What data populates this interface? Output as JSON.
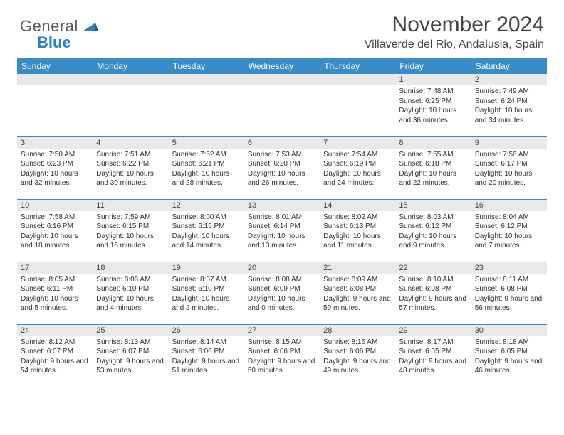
{
  "logo": {
    "text1": "General",
    "text2": "Blue"
  },
  "title": "November 2024",
  "location": "Villaverde del Rio, Andalusia, Spain",
  "colors": {
    "header_bg": "#3a8cc9",
    "header_text": "#ffffff",
    "daynum_bg": "#e9e9e9",
    "border": "#3a8cc9",
    "body_text": "#333333",
    "logo_gray": "#5a5a5a",
    "logo_blue": "#2d7fbf"
  },
  "day_names": [
    "Sunday",
    "Monday",
    "Tuesday",
    "Wednesday",
    "Thursday",
    "Friday",
    "Saturday"
  ],
  "weeks": [
    [
      {
        "num": "",
        "lines": []
      },
      {
        "num": "",
        "lines": []
      },
      {
        "num": "",
        "lines": []
      },
      {
        "num": "",
        "lines": []
      },
      {
        "num": "",
        "lines": []
      },
      {
        "num": "1",
        "lines": [
          "Sunrise: 7:48 AM",
          "Sunset: 6:25 PM",
          "Daylight: 10 hours and 36 minutes."
        ]
      },
      {
        "num": "2",
        "lines": [
          "Sunrise: 7:49 AM",
          "Sunset: 6:24 PM",
          "Daylight: 10 hours and 34 minutes."
        ]
      }
    ],
    [
      {
        "num": "3",
        "lines": [
          "Sunrise: 7:50 AM",
          "Sunset: 6:23 PM",
          "Daylight: 10 hours and 32 minutes."
        ]
      },
      {
        "num": "4",
        "lines": [
          "Sunrise: 7:51 AM",
          "Sunset: 6:22 PM",
          "Daylight: 10 hours and 30 minutes."
        ]
      },
      {
        "num": "5",
        "lines": [
          "Sunrise: 7:52 AM",
          "Sunset: 6:21 PM",
          "Daylight: 10 hours and 28 minutes."
        ]
      },
      {
        "num": "6",
        "lines": [
          "Sunrise: 7:53 AM",
          "Sunset: 6:20 PM",
          "Daylight: 10 hours and 26 minutes."
        ]
      },
      {
        "num": "7",
        "lines": [
          "Sunrise: 7:54 AM",
          "Sunset: 6:19 PM",
          "Daylight: 10 hours and 24 minutes."
        ]
      },
      {
        "num": "8",
        "lines": [
          "Sunrise: 7:55 AM",
          "Sunset: 6:18 PM",
          "Daylight: 10 hours and 22 minutes."
        ]
      },
      {
        "num": "9",
        "lines": [
          "Sunrise: 7:56 AM",
          "Sunset: 6:17 PM",
          "Daylight: 10 hours and 20 minutes."
        ]
      }
    ],
    [
      {
        "num": "10",
        "lines": [
          "Sunrise: 7:58 AM",
          "Sunset: 6:16 PM",
          "Daylight: 10 hours and 18 minutes."
        ]
      },
      {
        "num": "11",
        "lines": [
          "Sunrise: 7:59 AM",
          "Sunset: 6:15 PM",
          "Daylight: 10 hours and 16 minutes."
        ]
      },
      {
        "num": "12",
        "lines": [
          "Sunrise: 8:00 AM",
          "Sunset: 6:15 PM",
          "Daylight: 10 hours and 14 minutes."
        ]
      },
      {
        "num": "13",
        "lines": [
          "Sunrise: 8:01 AM",
          "Sunset: 6:14 PM",
          "Daylight: 10 hours and 13 minutes."
        ]
      },
      {
        "num": "14",
        "lines": [
          "Sunrise: 8:02 AM",
          "Sunset: 6:13 PM",
          "Daylight: 10 hours and 11 minutes."
        ]
      },
      {
        "num": "15",
        "lines": [
          "Sunrise: 8:03 AM",
          "Sunset: 6:12 PM",
          "Daylight: 10 hours and 9 minutes."
        ]
      },
      {
        "num": "16",
        "lines": [
          "Sunrise: 8:04 AM",
          "Sunset: 6:12 PM",
          "Daylight: 10 hours and 7 minutes."
        ]
      }
    ],
    [
      {
        "num": "17",
        "lines": [
          "Sunrise: 8:05 AM",
          "Sunset: 6:11 PM",
          "Daylight: 10 hours and 5 minutes."
        ]
      },
      {
        "num": "18",
        "lines": [
          "Sunrise: 8:06 AM",
          "Sunset: 6:10 PM",
          "Daylight: 10 hours and 4 minutes."
        ]
      },
      {
        "num": "19",
        "lines": [
          "Sunrise: 8:07 AM",
          "Sunset: 6:10 PM",
          "Daylight: 10 hours and 2 minutes."
        ]
      },
      {
        "num": "20",
        "lines": [
          "Sunrise: 8:08 AM",
          "Sunset: 6:09 PM",
          "Daylight: 10 hours and 0 minutes."
        ]
      },
      {
        "num": "21",
        "lines": [
          "Sunrise: 8:09 AM",
          "Sunset: 6:08 PM",
          "Daylight: 9 hours and 59 minutes."
        ]
      },
      {
        "num": "22",
        "lines": [
          "Sunrise: 8:10 AM",
          "Sunset: 6:08 PM",
          "Daylight: 9 hours and 57 minutes."
        ]
      },
      {
        "num": "23",
        "lines": [
          "Sunrise: 8:11 AM",
          "Sunset: 6:08 PM",
          "Daylight: 9 hours and 56 minutes."
        ]
      }
    ],
    [
      {
        "num": "24",
        "lines": [
          "Sunrise: 8:12 AM",
          "Sunset: 6:07 PM",
          "Daylight: 9 hours and 54 minutes."
        ]
      },
      {
        "num": "25",
        "lines": [
          "Sunrise: 8:13 AM",
          "Sunset: 6:07 PM",
          "Daylight: 9 hours and 53 minutes."
        ]
      },
      {
        "num": "26",
        "lines": [
          "Sunrise: 8:14 AM",
          "Sunset: 6:06 PM",
          "Daylight: 9 hours and 51 minutes."
        ]
      },
      {
        "num": "27",
        "lines": [
          "Sunrise: 8:15 AM",
          "Sunset: 6:06 PM",
          "Daylight: 9 hours and 50 minutes."
        ]
      },
      {
        "num": "28",
        "lines": [
          "Sunrise: 8:16 AM",
          "Sunset: 6:06 PM",
          "Daylight: 9 hours and 49 minutes."
        ]
      },
      {
        "num": "29",
        "lines": [
          "Sunrise: 8:17 AM",
          "Sunset: 6:05 PM",
          "Daylight: 9 hours and 48 minutes."
        ]
      },
      {
        "num": "30",
        "lines": [
          "Sunrise: 8:18 AM",
          "Sunset: 6:05 PM",
          "Daylight: 9 hours and 46 minutes."
        ]
      }
    ]
  ]
}
